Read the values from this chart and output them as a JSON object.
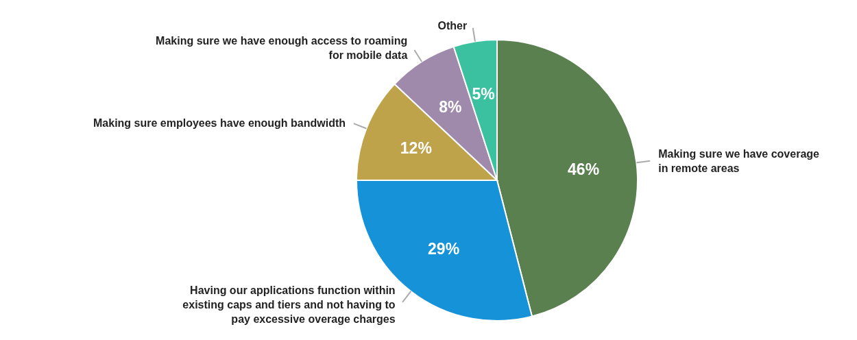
{
  "chart_data": {
    "type": "pie",
    "categories": [
      "Making sure we have coverage in remote areas",
      "Having our applications function within existing caps and tiers and not having to pay excessive overage charges",
      "Making sure employees have enough bandwidth",
      "Making sure we have enough access to roaming for mobile data",
      "Other"
    ],
    "values": [
      46,
      29,
      12,
      8,
      5
    ],
    "colors": [
      "#5b8050",
      "#1592d8",
      "#bea34a",
      "#a08aac",
      "#3cc1a0"
    ],
    "value_labels": [
      "46%",
      "29%",
      "12%",
      "8%",
      "5%"
    ]
  }
}
